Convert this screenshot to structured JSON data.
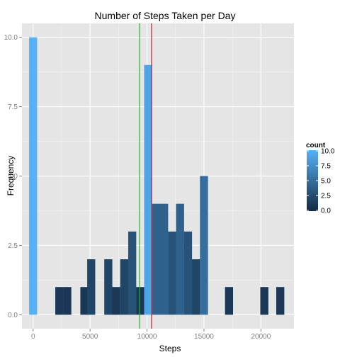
{
  "chart_data": {
    "type": "bar",
    "title": "Number of Steps Taken per Day",
    "xlabel": "Steps",
    "ylabel": "Frequency",
    "bin_width": 706.4,
    "xlim": [
      -980,
      22900
    ],
    "ylim": [
      -0.5,
      10.5
    ],
    "x_ticks": [
      0,
      5000,
      10000,
      15000,
      20000
    ],
    "x_tick_labels": [
      "0",
      "5000",
      "10000",
      "15000",
      "20000"
    ],
    "y_ticks": [
      0,
      2.5,
      5,
      7.5,
      10
    ],
    "y_tick_labels": [
      "0.0",
      "2.5",
      "5.0",
      "7.5",
      "10.0"
    ],
    "bins": [
      {
        "x": 0,
        "count": 10
      },
      {
        "x": 1500,
        "count": 0
      },
      {
        "x": 2300,
        "count": 1
      },
      {
        "x": 3000,
        "count": 1
      },
      {
        "x": 4500,
        "count": 1
      },
      {
        "x": 5100,
        "count": 2
      },
      {
        "x": 6600,
        "count": 2
      },
      {
        "x": 7300,
        "count": 1
      },
      {
        "x": 8000,
        "count": 2
      },
      {
        "x": 8700,
        "count": 3
      },
      {
        "x": 9400,
        "count": 1
      },
      {
        "x": 10100,
        "count": 9
      },
      {
        "x": 10800,
        "count": 4
      },
      {
        "x": 11500,
        "count": 4
      },
      {
        "x": 12200,
        "count": 3
      },
      {
        "x": 12900,
        "count": 4
      },
      {
        "x": 13600,
        "count": 3
      },
      {
        "x": 14300,
        "count": 2
      },
      {
        "x": 15000,
        "count": 5
      },
      {
        "x": 17200,
        "count": 1
      },
      {
        "x": 20300,
        "count": 1
      },
      {
        "x": 21700,
        "count": 1
      }
    ],
    "vlines": [
      {
        "x": 9354,
        "color": "#00cc00"
      },
      {
        "x": 10394,
        "color": "#e01e1e"
      }
    ],
    "legend": {
      "title": "count",
      "position": "right",
      "breaks": [
        10,
        7.5,
        5,
        2.5,
        0
      ],
      "labels": [
        "10.0",
        "7.5",
        "5.0",
        "2.5",
        "0.0"
      ],
      "low_color": "#132b43",
      "high_color": "#56b1f7"
    },
    "grid": true,
    "panel_color": "#e5e5e5",
    "grid_color": "#ffffff"
  }
}
